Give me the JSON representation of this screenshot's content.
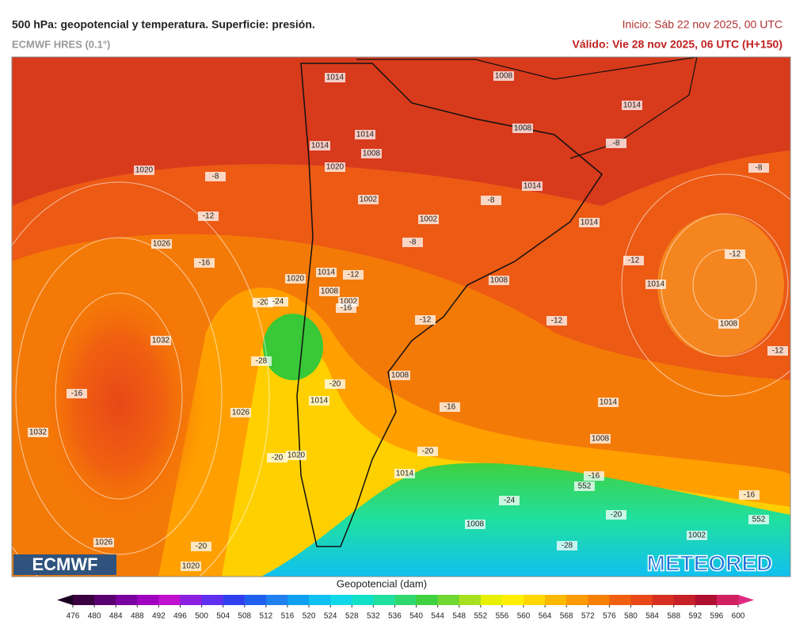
{
  "header": {
    "title": "500 hPa: geopotencial y temperatura. Superficie: presión.",
    "subtitle": "ECMWF HRES (0.1°)",
    "run": "Inicio: Sáb 22 nov 2025, 00 UTC",
    "valid": "Válido: Vie 28 nov 2025, 06 UTC (H+150)"
  },
  "map": {
    "labels": [
      "1014",
      "1008",
      "1014",
      "1008",
      "1014",
      "1014",
      "1008",
      "1020",
      "1020",
      "1002",
      "1002",
      "1014",
      "1014",
      "1026",
      "1020",
      "1014",
      "1008",
      "1002",
      "1008",
      "1014",
      "1008",
      "1032",
      "1008",
      "1014",
      "1026",
      "1014",
      "1032",
      "1008",
      "1020",
      "1014",
      "1008",
      "1002",
      "1026",
      "1020",
      "-8",
      "-8",
      "-8",
      "-8",
      "-8",
      "-12",
      "-16",
      "-12",
      "-12",
      "-12",
      "-12",
      "-12",
      "-12",
      "-20",
      "-24",
      "-28",
      "-16",
      "-16",
      "-20",
      "-16",
      "-20",
      "-20",
      "-16",
      "-16",
      "-24",
      "-20",
      "-28",
      "-20",
      "552",
      "552"
    ],
    "logo_left": "ECMWF",
    "logo_right": "METEORED"
  },
  "colorbar": {
    "title": "Geopotencial (dam)",
    "ticks": [
      476,
      480,
      484,
      488,
      492,
      496,
      500,
      504,
      508,
      512,
      516,
      520,
      524,
      528,
      532,
      536,
      540,
      544,
      548,
      552,
      556,
      560,
      564,
      568,
      572,
      576,
      580,
      584,
      588,
      592,
      596,
      600
    ],
    "colors": [
      "#3a0040",
      "#5a0070",
      "#7a00a0",
      "#a000c0",
      "#c010d0",
      "#8a20e0",
      "#6030f0",
      "#3040f0",
      "#2060f0",
      "#2080f0",
      "#10a0f0",
      "#10c0f0",
      "#10d8e8",
      "#10e0c8",
      "#20e0a0",
      "#30d870",
      "#40d040",
      "#70d830",
      "#a8e020",
      "#e8f000",
      "#fff000",
      "#ffd800",
      "#ffb800",
      "#ff9a00",
      "#f88000",
      "#f06010",
      "#e84818",
      "#d83020",
      "#c82028",
      "#b01030",
      "#d02060"
    ]
  }
}
